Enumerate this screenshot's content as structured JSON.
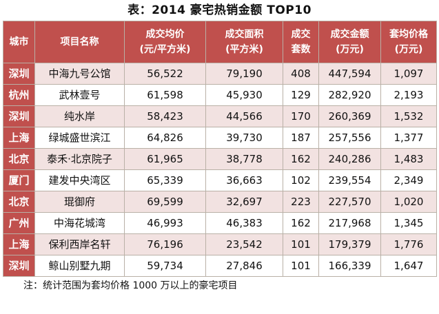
{
  "title": "表：2014 豪宅热销金额 TOP10",
  "headers": [
    {
      "line1": "城市",
      "line2": ""
    },
    {
      "line1": "项目名称",
      "line2": ""
    },
    {
      "line1": "成交均价",
      "line2": "(元/平方米)"
    },
    {
      "line1": "成交面积",
      "line2": "(平方米)"
    },
    {
      "line1": "成交",
      "line2": "套数"
    },
    {
      "line1": "成交金额",
      "line2": "(万元)"
    },
    {
      "line1": "套均价格",
      "line2": "(万元)"
    }
  ],
  "rows": [
    {
      "city": "深圳",
      "name": "中海九号公馆",
      "avg_price": "56,522",
      "area": "79,190",
      "units": "408",
      "amount": "447,594",
      "unit_price": "1,097"
    },
    {
      "city": "杭州",
      "name": "武林壹号",
      "avg_price": "61,598",
      "area": "45,930",
      "units": "129",
      "amount": "282,920",
      "unit_price": "2,193"
    },
    {
      "city": "深圳",
      "name": "纯水岸",
      "avg_price": "58,423",
      "area": "44,566",
      "units": "170",
      "amount": "260,369",
      "unit_price": "1,532"
    },
    {
      "city": "上海",
      "name": "绿城盛世滨江",
      "avg_price": "64,826",
      "area": "39,730",
      "units": "187",
      "amount": "257,556",
      "unit_price": "1,377"
    },
    {
      "city": "北京",
      "name": "泰禾·北京院子",
      "avg_price": "61,965",
      "area": "38,778",
      "units": "162",
      "amount": "240,286",
      "unit_price": "1,483"
    },
    {
      "city": "厦门",
      "name": "建发中央湾区",
      "avg_price": "65,339",
      "area": "36,663",
      "units": "102",
      "amount": "239,554",
      "unit_price": "2,349"
    },
    {
      "city": "北京",
      "name": "琨御府",
      "avg_price": "69,599",
      "area": "32,697",
      "units": "223",
      "amount": "227,570",
      "unit_price": "1,020"
    },
    {
      "city": "广州",
      "name": "中海花城湾",
      "avg_price": "46,993",
      "area": "46,383",
      "units": "162",
      "amount": "217,968",
      "unit_price": "1,345"
    },
    {
      "city": "上海",
      "name": "保利西岸名轩",
      "avg_price": "76,196",
      "area": "23,542",
      "units": "101",
      "amount": "179,379",
      "unit_price": "1,776"
    },
    {
      "city": "深圳",
      "name": "鲸山别墅九期",
      "avg_price": "59,734",
      "area": "27,846",
      "units": "101",
      "amount": "166,339",
      "unit_price": "1,647"
    }
  ],
  "note": "注：统计范围为套均价格 1000 万以上的豪宅项目",
  "colors": {
    "header_bg": "#c0504d",
    "stripe_bg": "#f2e2e1",
    "border": "#b9b0a6"
  }
}
